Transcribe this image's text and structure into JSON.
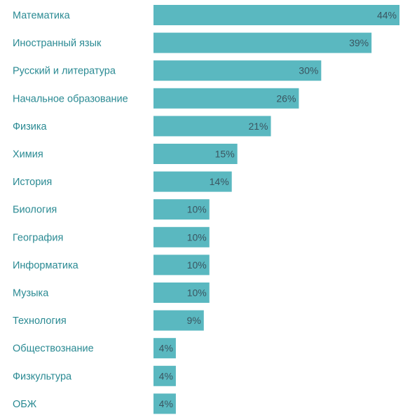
{
  "chart_data": {
    "type": "bar",
    "orientation": "horizontal",
    "categories": [
      "Математика",
      "Иностранный язык",
      "Русский и литература",
      "Начальное образование",
      "Физика",
      "Химия",
      "История",
      "Биология",
      "География",
      "Информатика",
      "Музыка",
      "Технология",
      "Обществознание",
      "Физкультура",
      "ОБЖ"
    ],
    "values": [
      44,
      39,
      30,
      26,
      21,
      15,
      14,
      10,
      10,
      10,
      10,
      9,
      4,
      4,
      4
    ],
    "value_labels": [
      "44%",
      "39%",
      "30%",
      "26%",
      "21%",
      "15%",
      "14%",
      "10%",
      "10%",
      "10%",
      "10%",
      "9%",
      "4%",
      "4%",
      "4%"
    ],
    "unit": "%",
    "xlim": [
      0,
      44
    ],
    "title": "",
    "xlabel": "",
    "ylabel": "",
    "grid": false,
    "legend": "none",
    "colors": {
      "bar": "#5ab8c0",
      "category_text": "#2a8a93",
      "value_text": "#3a5560",
      "background": "#ffffff"
    }
  }
}
